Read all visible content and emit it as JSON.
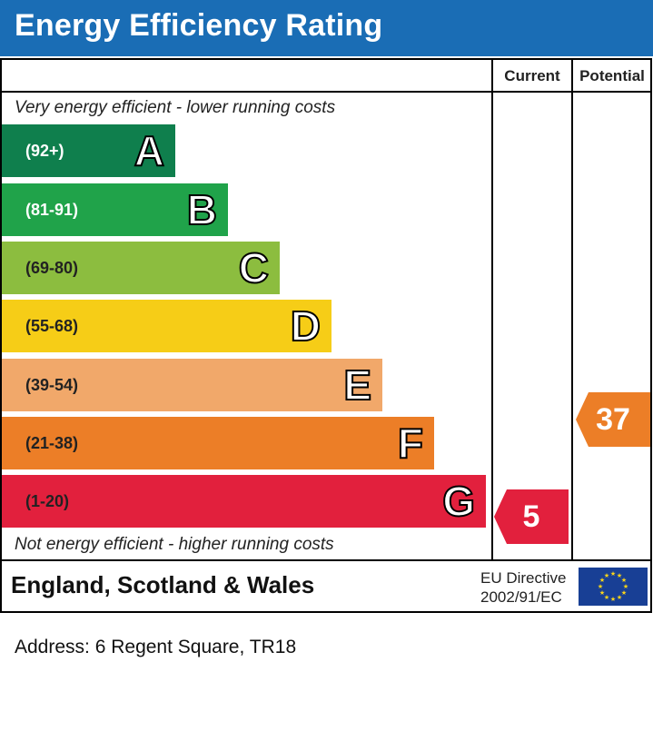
{
  "title": "Energy Efficiency Rating",
  "columns": {
    "current": "Current",
    "potential": "Potential"
  },
  "top_note": "Very energy efficient - lower running costs",
  "bottom_note": "Not energy efficient - higher running costs",
  "bands": [
    {
      "letter": "A",
      "range": "(92+)",
      "color": "#0f7f4d"
    },
    {
      "letter": "B",
      "range": "(81-91)",
      "color": "#20a34a"
    },
    {
      "letter": "C",
      "range": "(69-80)",
      "color": "#8cbd3f"
    },
    {
      "letter": "D",
      "range": "(55-68)",
      "color": "#f6cd17"
    },
    {
      "letter": "E",
      "range": "(39-54)",
      "color": "#f1a86a"
    },
    {
      "letter": "F",
      "range": "(21-38)",
      "color": "#ec7e27"
    },
    {
      "letter": "G",
      "range": "(1-20)",
      "color": "#e2203d"
    }
  ],
  "current": {
    "value": "5",
    "band": "G",
    "color": "#e2203d"
  },
  "potential": {
    "value": "37",
    "band": "F",
    "color": "#ec7e27"
  },
  "footer": {
    "region": "England, Scotland & Wales",
    "directive_line1": "EU Directive",
    "directive_line2": "2002/91/EC"
  },
  "address": "Address: 6 Regent Square, TR18"
}
